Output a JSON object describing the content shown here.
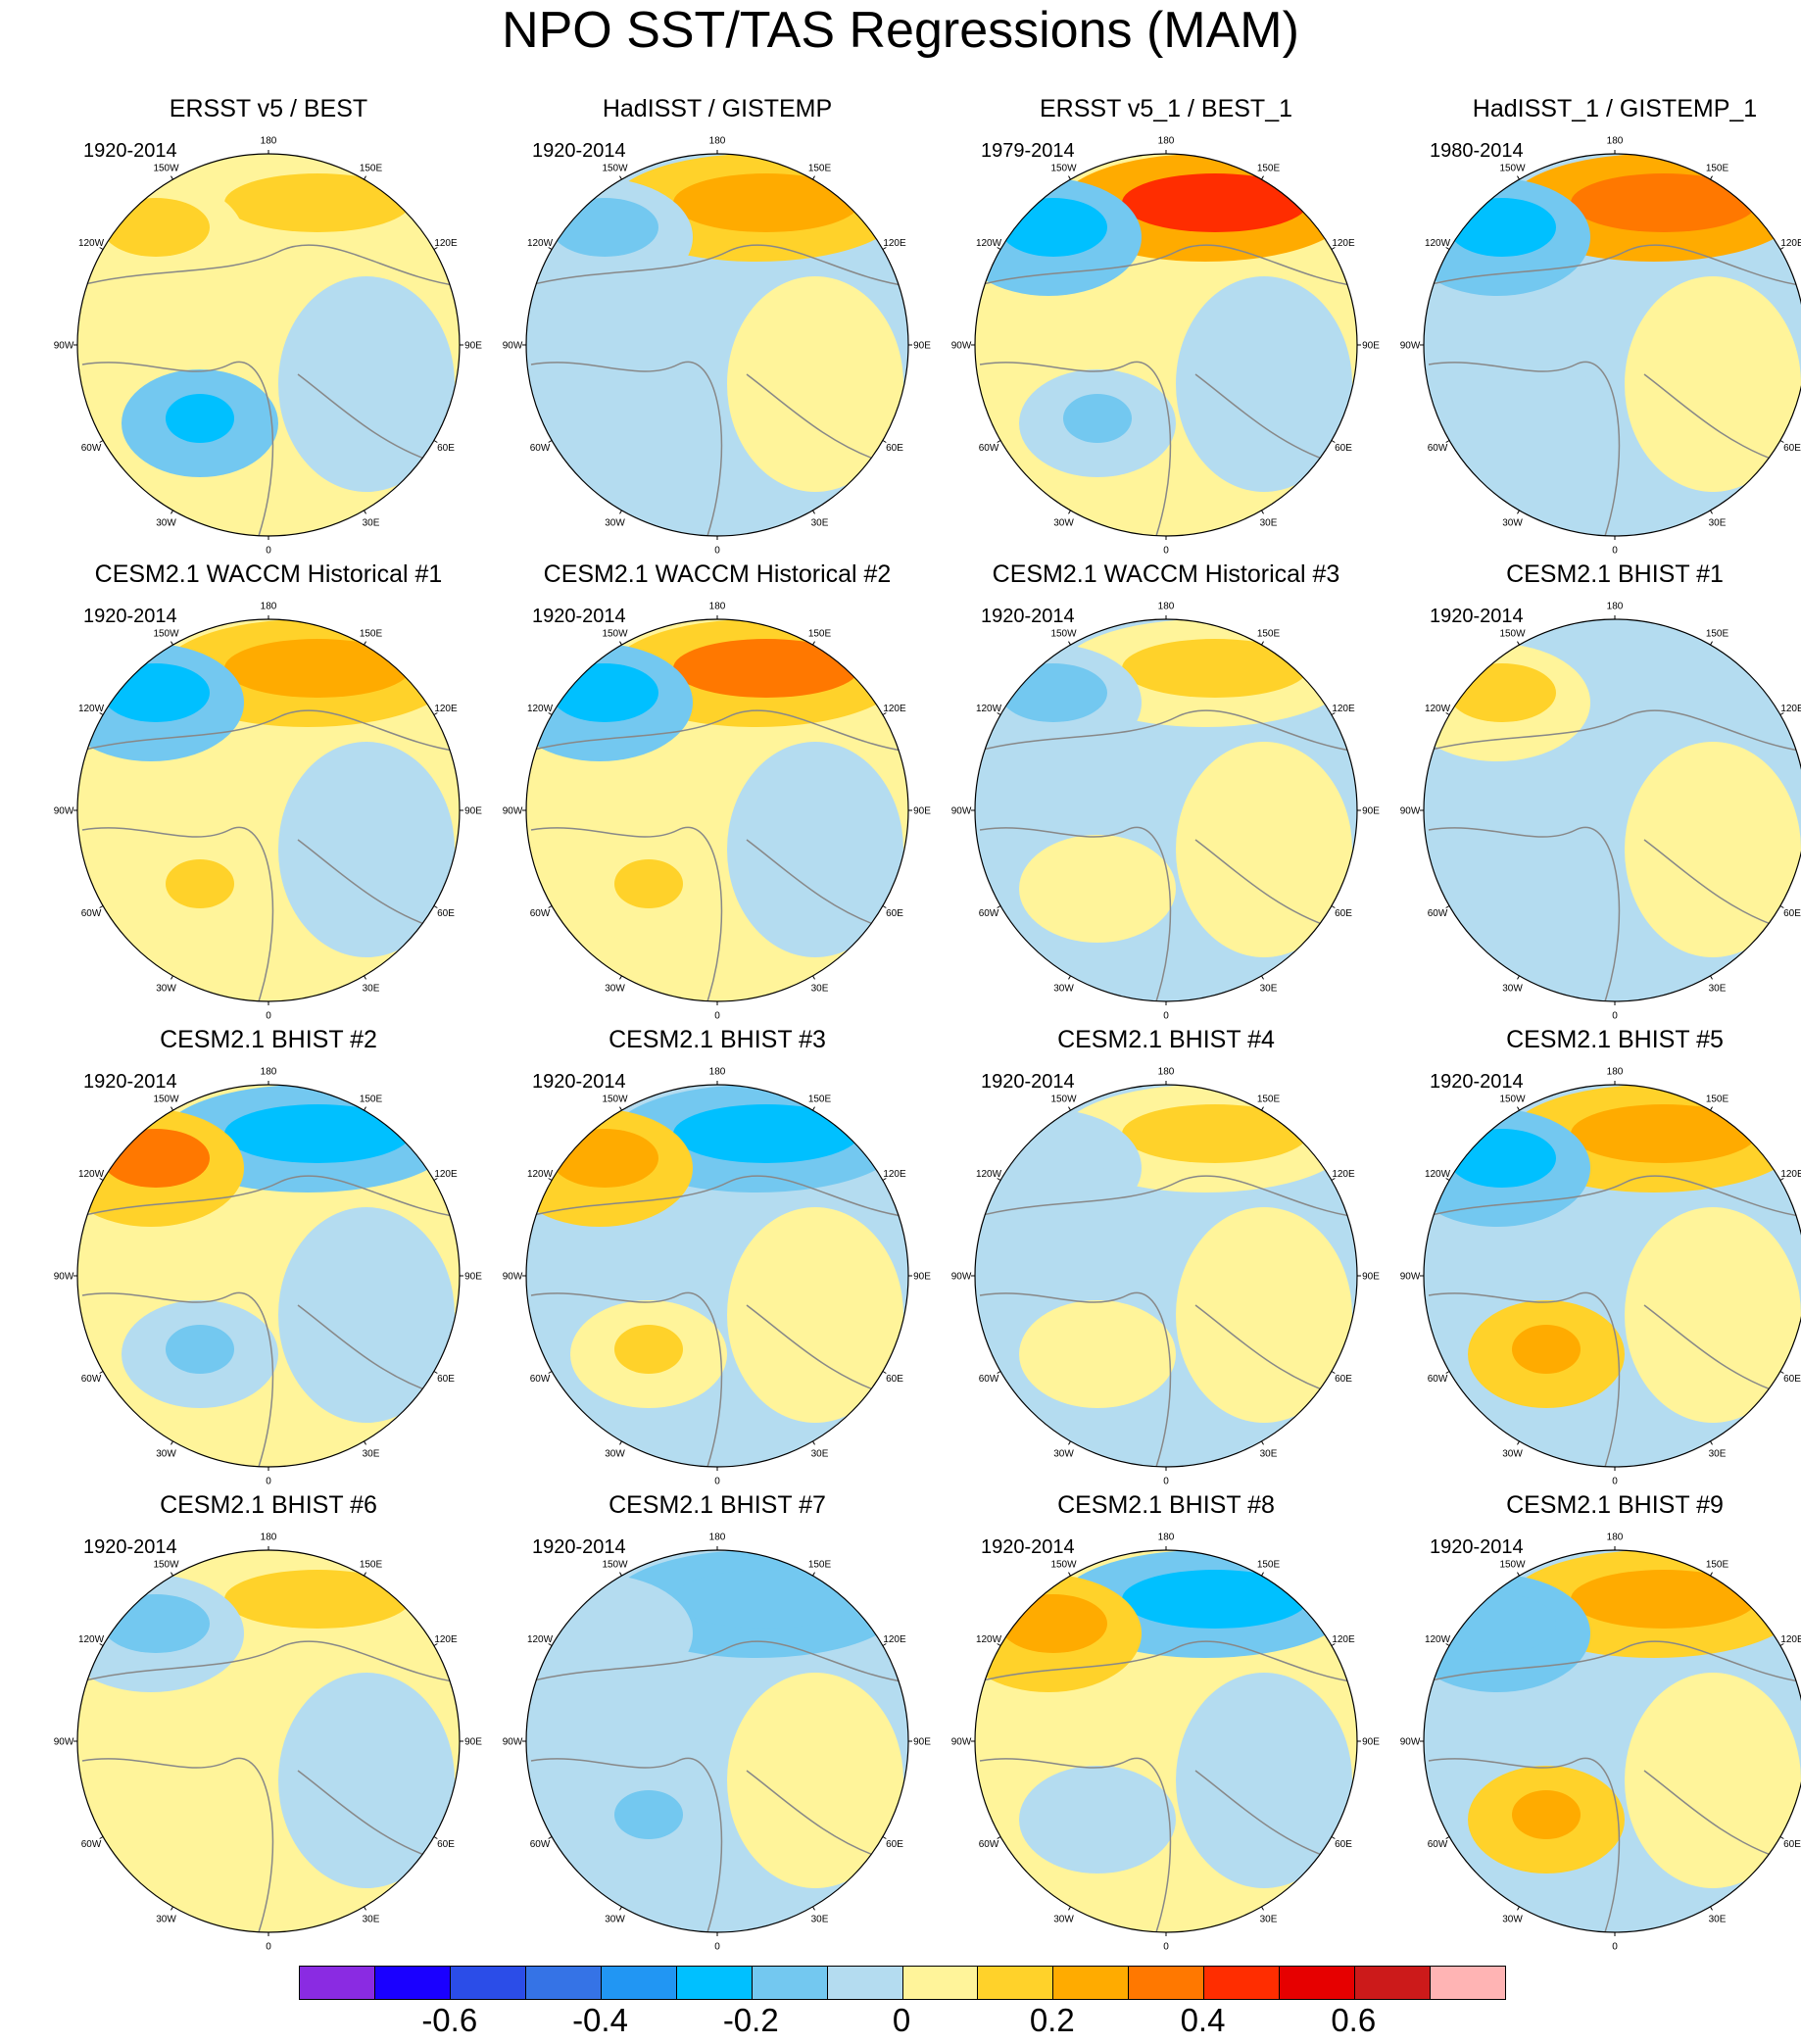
{
  "title": "NPO SST/TAS Regressions (MAM)",
  "chart_data": {
    "type": "polar-stereographic contour map panels",
    "panels": [
      {
        "title": "ERSST v5 / BEST",
        "period": "1920-2014",
        "pattern": {
          "pacific": 0.15,
          "alaska": 0.1,
          "atlantic": -0.25,
          "land": 0.05
        }
      },
      {
        "title": "HadISST / GISTEMP",
        "period": "1920-2014",
        "pattern": {
          "pacific": 0.25,
          "alaska": -0.15,
          "atlantic": -0.1,
          "land": -0.05
        }
      },
      {
        "title": "ERSST v5_1 / BEST_1",
        "period": "1979-2014",
        "pattern": {
          "pacific": 0.4,
          "alaska": -0.3,
          "atlantic": -0.15,
          "land": 0.05
        }
      },
      {
        "title": "HadISST_1 / GISTEMP_1",
        "period": "1980-2014",
        "pattern": {
          "pacific": 0.35,
          "alaska": -0.3,
          "atlantic": -0.1,
          "land": -0.05
        }
      },
      {
        "title": "CESM2.1 WACCM Historical #1",
        "period": "1920-2014",
        "pattern": {
          "pacific": 0.25,
          "alaska": -0.25,
          "atlantic": 0.1,
          "land": 0.05
        }
      },
      {
        "title": "CESM2.1 WACCM Historical #2",
        "period": "1920-2014",
        "pattern": {
          "pacific": 0.3,
          "alaska": -0.3,
          "atlantic": 0.15,
          "land": 0.05
        }
      },
      {
        "title": "CESM2.1 WACCM Historical #3",
        "period": "1920-2014",
        "pattern": {
          "pacific": 0.15,
          "alaska": -0.15,
          "atlantic": 0.05,
          "land": -0.05
        }
      },
      {
        "title": "CESM2.1 BHIST #1",
        "period": "1920-2014",
        "pattern": {
          "pacific": -0.1,
          "alaska": 0.15,
          "atlantic": -0.1,
          "land": -0.05
        }
      },
      {
        "title": "CESM2.1 BHIST #2",
        "period": "1920-2014",
        "pattern": {
          "pacific": -0.25,
          "alaska": 0.3,
          "atlantic": -0.15,
          "land": 0.05
        }
      },
      {
        "title": "CESM2.1 BHIST #3",
        "period": "1920-2014",
        "pattern": {
          "pacific": -0.25,
          "alaska": 0.2,
          "atlantic": 0.1,
          "land": -0.05
        }
      },
      {
        "title": "CESM2.1 BHIST #4",
        "period": "1920-2014",
        "pattern": {
          "pacific": 0.1,
          "alaska": -0.1,
          "atlantic": 0.05,
          "land": -0.05
        }
      },
      {
        "title": "CESM2.1 BHIST #5",
        "period": "1920-2014",
        "pattern": {
          "pacific": 0.2,
          "alaska": -0.25,
          "atlantic": 0.2,
          "land": -0.05
        }
      },
      {
        "title": "CESM2.1 BHIST #6",
        "period": "1920-2014",
        "pattern": {
          "pacific": 0.15,
          "alaska": -0.15,
          "atlantic": 0.05,
          "land": 0.05
        }
      },
      {
        "title": "CESM2.1 BHIST #7",
        "period": "1920-2014",
        "pattern": {
          "pacific": -0.2,
          "alaska": -0.1,
          "atlantic": -0.15,
          "land": -0.05
        }
      },
      {
        "title": "CESM2.1 BHIST #8",
        "period": "1920-2014",
        "pattern": {
          "pacific": -0.25,
          "alaska": 0.2,
          "atlantic": -0.1,
          "land": 0.05
        }
      },
      {
        "title": "CESM2.1 BHIST #9",
        "period": "1920-2014",
        "pattern": {
          "pacific": 0.25,
          "alaska": -0.2,
          "atlantic": 0.2,
          "land": -0.05
        }
      }
    ],
    "longitude_labels": [
      "180",
      "150E",
      "120E",
      "90E",
      "60E",
      "30E",
      "0",
      "30W",
      "60W",
      "90W",
      "120W",
      "150W"
    ],
    "colorbar": {
      "colors": [
        "#8a2be2",
        "#1a00ff",
        "#2b4de8",
        "#3573e6",
        "#2196f3",
        "#00c0ff",
        "#73c8f0",
        "#b4dcf0",
        "#fff49a",
        "#ffd22a",
        "#ffab00",
        "#ff7800",
        "#ff2d00",
        "#e60000",
        "#cc1a1a",
        "#ffb4b4"
      ],
      "tick_labels": [
        "-0.6",
        "-0.4",
        "-0.2",
        "0",
        "0.2",
        "0.4",
        "0.6"
      ],
      "tick_values": [
        -0.6,
        -0.4,
        -0.2,
        0,
        0.2,
        0.4,
        0.6
      ],
      "bounds": [
        -0.7,
        -0.6,
        -0.5,
        -0.4,
        -0.3,
        -0.2,
        -0.1,
        0,
        0.1,
        0.2,
        0.3,
        0.4,
        0.5,
        0.6,
        0.7
      ]
    }
  }
}
